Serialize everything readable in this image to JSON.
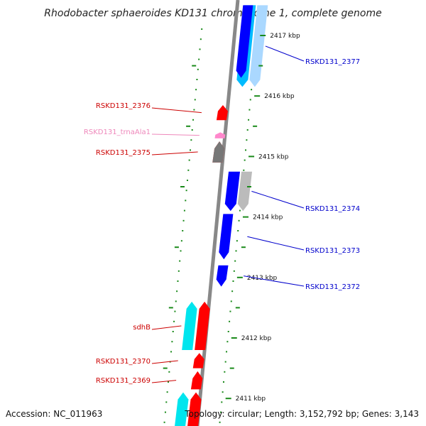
{
  "title": "Rhodobacter sphaeroides KD131 chromosome 1, complete genome",
  "footer": {
    "accession": "Accession: NC_011963",
    "summary": "Topology: circular; Length: 3,152,792 bp; Genes: 3,143"
  },
  "colors": {
    "forward_gene": "#0000ff",
    "forward_cds": "#00c8ff",
    "forward_light": "#aad8ff",
    "reverse_gene": "#ff0000",
    "reverse_cds": "#00e5ee",
    "trna": "#ff88cc",
    "pseudogene": "#777777",
    "grey": "#bbbbbb",
    "tick": "#1a8a1a",
    "backbone": "#888888"
  },
  "scale": {
    "unit": "kbp",
    "ticks": [
      {
        "kbp": 2417,
        "label": "2417 kbp"
      },
      {
        "kbp": 2416,
        "label": "2416 kbp"
      },
      {
        "kbp": 2415,
        "label": "2415 kbp"
      },
      {
        "kbp": 2414,
        "label": "2414 kbp"
      },
      {
        "kbp": 2413,
        "label": "2413 kbp"
      },
      {
        "kbp": 2412,
        "label": "2412 kbp"
      },
      {
        "kbp": 2411,
        "label": "2411 kbp"
      }
    ]
  },
  "genes": [
    {
      "label": "RSKD131_2377",
      "strand": "forward",
      "start_kbp": 2416.15,
      "end_kbp": 2417.5,
      "color": "#00bbff",
      "color2": "#aad8ff"
    },
    {
      "label": "",
      "strand": "forward",
      "start_kbp": 2416.3,
      "end_kbp": 2417.5,
      "color": "#0000ff"
    },
    {
      "label": "RSKD131_2376",
      "strand": "reverse",
      "start_kbp": 2415.6,
      "end_kbp": 2415.85,
      "color": "#ff0000"
    },
    {
      "label": "RSKD131_trnaAla1",
      "strand": "reverse",
      "start_kbp": 2415.3,
      "end_kbp": 2415.4,
      "color": "#ff88cc"
    },
    {
      "label": "RSKD131_2375",
      "strand": "reverse",
      "start_kbp": 2414.9,
      "end_kbp": 2415.25,
      "color": "#ff0000"
    },
    {
      "label": "",
      "strand": "reverse",
      "start_kbp": 2414.9,
      "end_kbp": 2415.25,
      "color": "#777777"
    },
    {
      "label": "RSKD131_2374",
      "strand": "forward",
      "start_kbp": 2414.1,
      "end_kbp": 2414.75,
      "color": "#0000ff",
      "color2": "#bbbbbb"
    },
    {
      "label": "RSKD131_2373",
      "strand": "forward",
      "start_kbp": 2413.3,
      "end_kbp": 2414.05,
      "color": "#0000ff"
    },
    {
      "label": "RSKD131_2372",
      "strand": "forward",
      "start_kbp": 2412.85,
      "end_kbp": 2413.2,
      "color": "#0000ff"
    },
    {
      "label": "sdhB",
      "strand": "reverse",
      "start_kbp": 2411.8,
      "end_kbp": 2412.6,
      "color": "#ff0000",
      "color2": "#00e5ee"
    },
    {
      "label": "RSKD131_2370",
      "strand": "reverse",
      "start_kbp": 2411.5,
      "end_kbp": 2411.75,
      "color": "#ff0000"
    },
    {
      "label": "RSKD131_2369",
      "strand": "reverse",
      "start_kbp": 2411.15,
      "end_kbp": 2411.45,
      "color": "#ff0000"
    },
    {
      "label": "",
      "strand": "reverse",
      "start_kbp": 2410.5,
      "end_kbp": 2411.1,
      "color": "#ff0000",
      "color2": "#00e5ee"
    }
  ]
}
